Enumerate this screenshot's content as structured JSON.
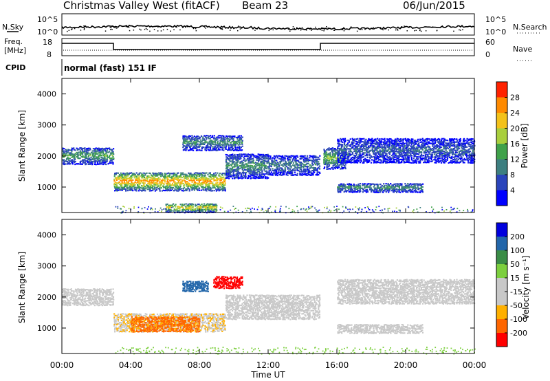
{
  "header": {
    "title": "Christmas Valley West (fitACF)",
    "beam": "Beam 23",
    "date": "06/Jun/2015"
  },
  "noise_panel": {
    "left_label": "N.Sky",
    "right_label": "N.Search",
    "left_ticks": [
      "10^5",
      "10^0"
    ],
    "right_ticks": [
      "10^5",
      "10^0"
    ]
  },
  "freq_panel": {
    "left_label_1": "Freq.",
    "left_label_2": "[MHz]",
    "right_label": "Nave",
    "left_ticks": [
      "18",
      "8"
    ],
    "right_ticks": [
      "60",
      "0"
    ]
  },
  "cpid": {
    "label": "CPID",
    "text": "normal (fast) 151 IF"
  },
  "colors": {
    "power": [
      "#0000ff",
      "#2a44bb",
      "#3d7f80",
      "#3fa14a",
      "#a9cf3d",
      "#f3c21a",
      "#ff8a00",
      "#ff2200"
    ],
    "velocity": [
      "#ff0000",
      "#ff6600",
      "#ffb000",
      "#c8c8c8",
      "#c8c8c8",
      "#7ccf3e",
      "#3a8c46",
      "#2266aa",
      "#0000dd"
    ]
  },
  "chart_data": [
    {
      "type": "heatmap",
      "name": "Power",
      "ylabel": "Slant Range [km]",
      "ylim": [
        180,
        4500
      ],
      "yticks": [
        "4000",
        "3000",
        "2000",
        "1000"
      ],
      "ytick_values": [
        4000,
        3000,
        2000,
        1000
      ],
      "colorbar_label": "Power [dB]",
      "colorbar_ticks": [
        "28",
        "24",
        "20",
        "16",
        "12",
        "8",
        "4"
      ],
      "colorbar_range": [
        0,
        32
      ],
      "regions": [
        {
          "t0": 0.0,
          "t1": 3.0,
          "r0": 1750,
          "r1": 2300,
          "peak": 14
        },
        {
          "t0": 3.0,
          "t1": 9.5,
          "r0": 900,
          "r1": 1500,
          "peak": 26
        },
        {
          "t0": 9.5,
          "t1": 12.0,
          "r0": 1300,
          "r1": 2100,
          "peak": 12
        },
        {
          "t0": 12.0,
          "t1": 15.0,
          "r0": 1400,
          "r1": 2050,
          "peak": 10
        },
        {
          "t0": 15.2,
          "t1": 16.5,
          "r0": 1600,
          "r1": 2300,
          "peak": 16
        },
        {
          "t0": 16.0,
          "t1": 21.0,
          "r0": 850,
          "r1": 1150,
          "peak": 12
        },
        {
          "t0": 16.0,
          "t1": 24.0,
          "r0": 1800,
          "r1": 2600,
          "peak": 8
        },
        {
          "t0": 7.0,
          "t1": 10.5,
          "r0": 2200,
          "r1": 2700,
          "peak": 12
        },
        {
          "t0": 6.0,
          "t1": 9.0,
          "r0": 200,
          "r1": 500,
          "peak": 22
        }
      ]
    },
    {
      "type": "heatmap",
      "name": "Velocity",
      "ylabel": "Slant Range [km]",
      "ylim": [
        180,
        4500
      ],
      "yticks": [
        "4000",
        "3000",
        "2000",
        "1000"
      ],
      "ytick_values": [
        4000,
        3000,
        2000,
        1000
      ],
      "colorbar_label": "Velocity [m s⁻¹]",
      "colorbar_ticks": [
        "200",
        "100",
        "50",
        "15",
        "-15",
        "-50",
        "-100",
        "-200"
      ],
      "regions": [
        {
          "t0": 0.0,
          "t1": 3.0,
          "r0": 1750,
          "r1": 2300,
          "v": 0
        },
        {
          "t0": 3.0,
          "t1": 9.5,
          "r0": 900,
          "r1": 1500,
          "v": -10
        },
        {
          "t0": 9.5,
          "t1": 15.0,
          "r0": 1300,
          "r1": 2100,
          "v": 0
        },
        {
          "t0": 16.0,
          "t1": 24.0,
          "r0": 1800,
          "r1": 2600,
          "v": 0
        },
        {
          "t0": 16.0,
          "t1": 21.0,
          "r0": 850,
          "r1": 1150,
          "v": 0
        },
        {
          "t0": 7.0,
          "t1": 8.5,
          "r0": 2200,
          "r1": 2550,
          "v": 150
        },
        {
          "t0": 8.8,
          "t1": 10.5,
          "r0": 2300,
          "r1": 2700,
          "v": -180
        },
        {
          "t0": 4.0,
          "t1": 8.0,
          "r0": 900,
          "r1": 1400,
          "v": -60
        }
      ]
    }
  ],
  "xaxis": {
    "label": "Time UT",
    "ticks": [
      "00:00",
      "04:00",
      "08:00",
      "12:00",
      "16:00",
      "20:00",
      "00:00"
    ],
    "range_hours": [
      0,
      24
    ]
  }
}
